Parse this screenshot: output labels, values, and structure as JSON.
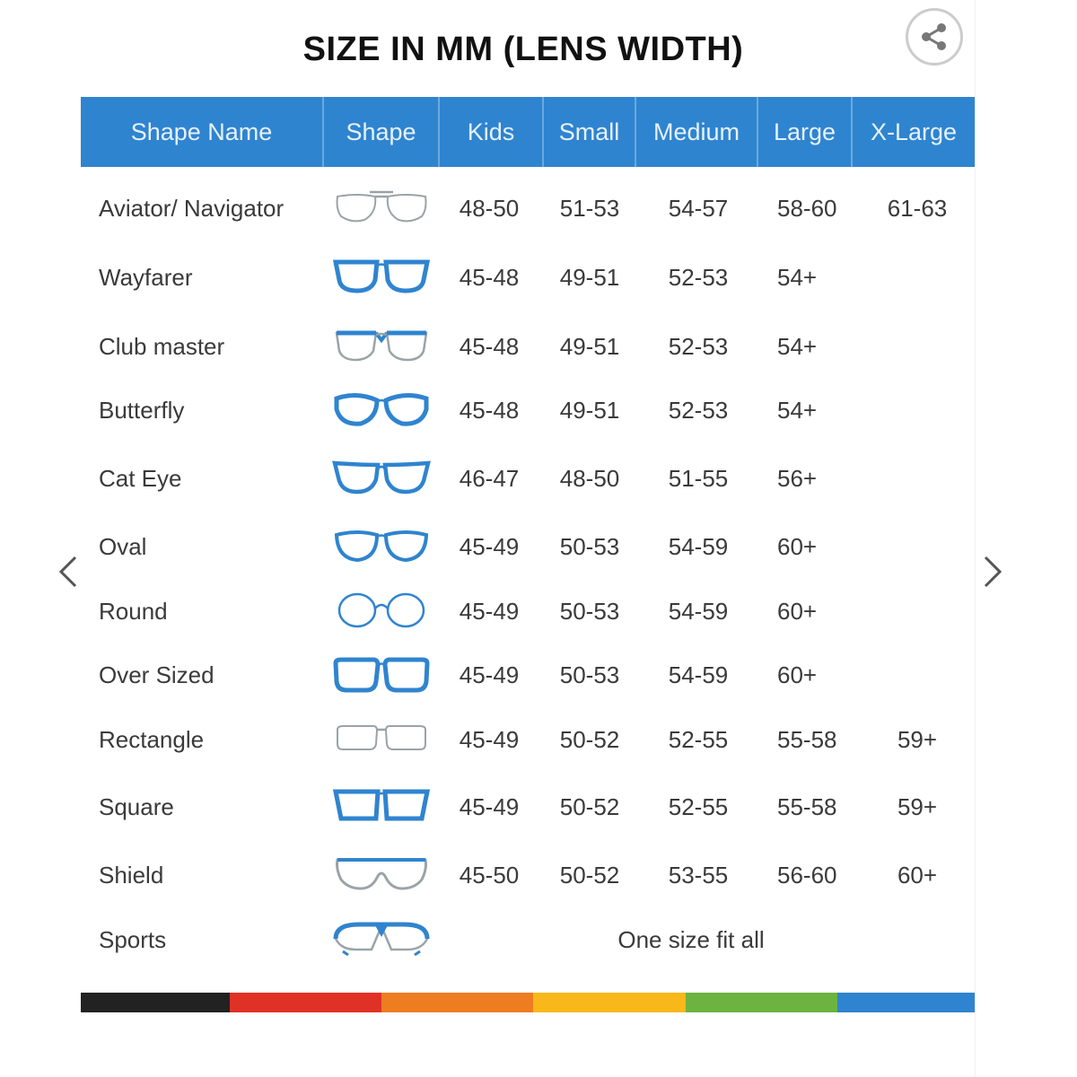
{
  "title": "SIZE IN MM (LENS WIDTH)",
  "share": {
    "icon": "share-icon"
  },
  "nav": {
    "prev_icon": "chevron-left-icon",
    "next_icon": "chevron-right-icon"
  },
  "colors": {
    "header": "#2f84cf",
    "frame_blue": "#2f84cf",
    "frame_grey": "#9aa3a8",
    "stripe": [
      "#222222",
      "#e03127",
      "#ee7d22",
      "#f8b81a",
      "#6db33f",
      "#2f84cf"
    ]
  },
  "table": {
    "headers": [
      "Shape Name",
      "Shape",
      "Kids",
      "Small",
      "Medium",
      "Large",
      "X-Large"
    ],
    "rows": [
      {
        "name": "Aviator/ Navigator",
        "icon": "aviator",
        "kids": "48-50",
        "small": "51-53",
        "medium": "54-57",
        "large": "58-60",
        "xlarge": "61-63"
      },
      {
        "name": "Wayfarer",
        "icon": "wayfarer",
        "kids": "45-48",
        "small": "49-51",
        "medium": "52-53",
        "large": "54+",
        "xlarge": ""
      },
      {
        "name": "Club master",
        "icon": "clubmaster",
        "kids": "45-48",
        "small": "49-51",
        "medium": "52-53",
        "large": "54+",
        "xlarge": ""
      },
      {
        "name": "Butterfly",
        "icon": "butterfly",
        "kids": "45-48",
        "small": "49-51",
        "medium": "52-53",
        "large": "54+",
        "xlarge": ""
      },
      {
        "name": "Cat Eye",
        "icon": "cateye",
        "kids": "46-47",
        "small": "48-50",
        "medium": "51-55",
        "large": "56+",
        "xlarge": ""
      },
      {
        "name": "Oval",
        "icon": "oval",
        "kids": "45-49",
        "small": "50-53",
        "medium": "54-59",
        "large": "60+",
        "xlarge": ""
      },
      {
        "name": "Round",
        "icon": "round",
        "kids": "45-49",
        "small": "50-53",
        "medium": "54-59",
        "large": "60+",
        "xlarge": ""
      },
      {
        "name": "Over Sized",
        "icon": "oversized",
        "kids": "45-49",
        "small": "50-53",
        "medium": "54-59",
        "large": "60+",
        "xlarge": ""
      },
      {
        "name": "Rectangle",
        "icon": "rectangle",
        "kids": "45-49",
        "small": "50-52",
        "medium": "52-55",
        "large": "55-58",
        "xlarge": "59+"
      },
      {
        "name": "Square",
        "icon": "square",
        "kids": "45-49",
        "small": "50-52",
        "medium": "52-55",
        "large": "55-58",
        "xlarge": "59+"
      },
      {
        "name": "Shield",
        "icon": "shield",
        "kids": "45-50",
        "small": "50-52",
        "medium": "53-55",
        "large": "56-60",
        "xlarge": "60+"
      },
      {
        "name": "Sports",
        "icon": "sports",
        "span_text": "One size fit all"
      }
    ]
  }
}
